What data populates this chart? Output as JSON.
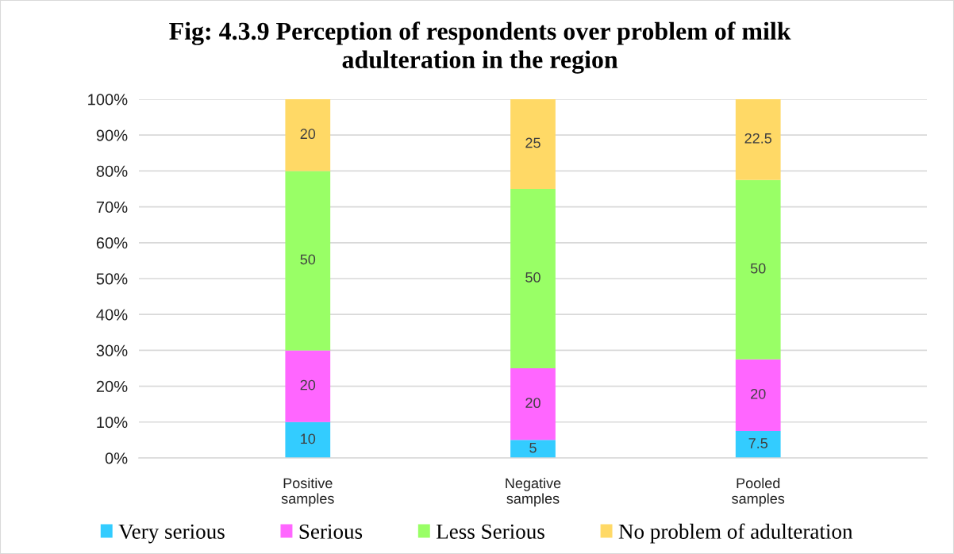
{
  "chart_data": {
    "type": "bar",
    "stacked": true,
    "title": "Fig: 4.3.9 Perception of respondents over problem of milk\nadulteration in the region",
    "categories": [
      "Positive samples",
      "Negative samples",
      "Pooled samples"
    ],
    "series": [
      {
        "name": "Very serious",
        "color": "#33ccff",
        "values": [
          10,
          5,
          7.5
        ]
      },
      {
        "name": "Serious",
        "color": "#ff66ff",
        "values": [
          20,
          20,
          20
        ]
      },
      {
        "name": "Less Serious",
        "color": "#99ff66",
        "values": [
          50,
          50,
          50
        ]
      },
      {
        "name": "No problem of adulteration",
        "color": "#ffd966",
        "values": [
          20,
          25,
          22.5
        ]
      }
    ],
    "ylim": [
      0,
      100
    ],
    "yticks": [
      {
        "value": 0,
        "label": "0%"
      },
      {
        "value": 10,
        "label": "10%"
      },
      {
        "value": 20,
        "label": "20%"
      },
      {
        "value": 30,
        "label": "30%"
      },
      {
        "value": 40,
        "label": "40%"
      },
      {
        "value": 50,
        "label": "50%"
      },
      {
        "value": 60,
        "label": "60%"
      },
      {
        "value": 70,
        "label": "70%"
      },
      {
        "value": 80,
        "label": "80%"
      },
      {
        "value": 90,
        "label": "90%"
      },
      {
        "value": 100,
        "label": "100%"
      }
    ],
    "grid": "y",
    "legend": "bottom",
    "data_labels": true
  }
}
